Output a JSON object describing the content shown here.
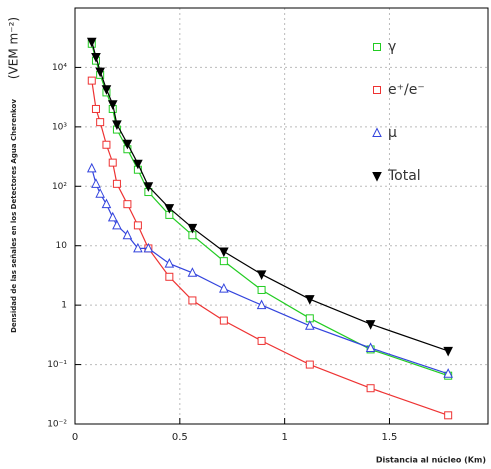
{
  "chart_data": {
    "type": "line",
    "y_label": "Densidad de las señales en los Detectores Agua Cherenkov",
    "y_unit": "(VEM m⁻²)",
    "x_label": "Distancia al núcleo (Km)",
    "x": [
      0.08,
      0.1,
      0.12,
      0.15,
      0.18,
      0.2,
      0.25,
      0.3,
      0.35,
      0.45,
      0.56,
      0.71,
      0.89,
      1.12,
      1.41,
      1.78
    ],
    "series": [
      {
        "name": "γ",
        "color": "#22cc22",
        "marker": "square",
        "values": [
          25000,
          13000,
          7500,
          3800,
          2000,
          900,
          420,
          190,
          80,
          33,
          15,
          5.5,
          1.8,
          0.6,
          0.18,
          0.065
        ]
      },
      {
        "name": "e⁺/e⁻",
        "color": "#ee3333",
        "marker": "square",
        "values": [
          6000,
          2000,
          1200,
          500,
          250,
          110,
          50,
          22,
          9,
          3,
          1.2,
          0.55,
          0.25,
          0.1,
          0.04,
          0.014
        ]
      },
      {
        "name": "μ",
        "color": "#3344dd",
        "marker": "triangle",
        "values": [
          200,
          110,
          75,
          50,
          30,
          22,
          15,
          9,
          9,
          5,
          3.5,
          1.9,
          1.0,
          0.45,
          0.19,
          0.07
        ]
      },
      {
        "name": "Total",
        "color": "#000000",
        "marker": "triangle-down",
        "values": [
          27000,
          15000,
          8500,
          4300,
          2400,
          1100,
          520,
          240,
          100,
          43,
          20,
          8,
          3.3,
          1.26,
          0.48,
          0.17
        ]
      }
    ],
    "xlim": [
      0,
      1.97
    ],
    "xticks": [
      0,
      0.5,
      1,
      1.5
    ],
    "ylim": [
      0.01,
      100000
    ],
    "yticks": [
      {
        "value": 0.01,
        "label": "10⁻²"
      },
      {
        "value": 0.1,
        "label": "10⁻¹"
      },
      1,
      10,
      {
        "value": 100,
        "label": "10²"
      },
      {
        "value": 1000,
        "label": "10³"
      },
      {
        "value": 10000,
        "label": "10⁴"
      }
    ],
    "log_y": true,
    "grid": true,
    "legend": "upper right"
  }
}
